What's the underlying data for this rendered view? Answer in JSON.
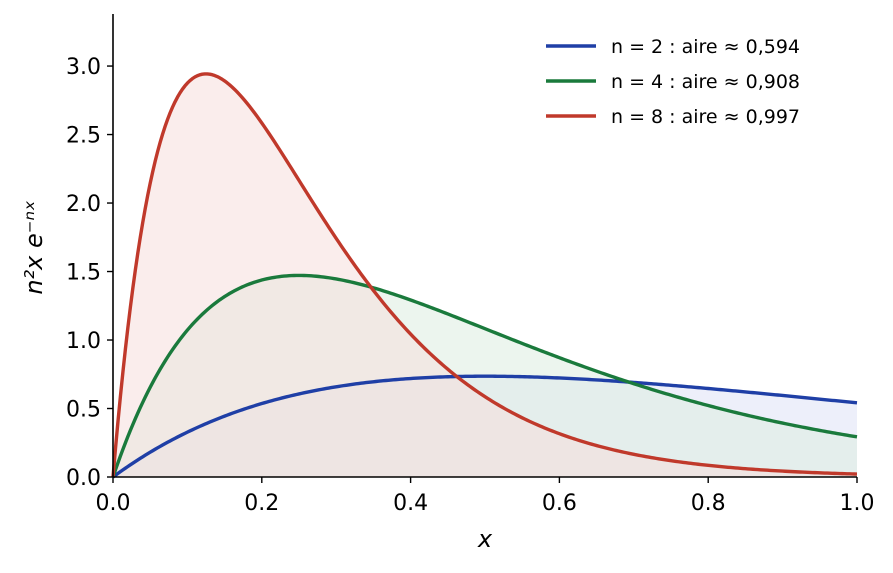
{
  "chart_data": {
    "type": "area",
    "title": "",
    "xlabel": "x",
    "ylabel": "n²x e⁻ⁿˣ",
    "xlim": [
      0.0,
      1.0
    ],
    "ylim": [
      0.0,
      3.38
    ],
    "x_ticks": [
      "0.0",
      "0.2",
      "0.4",
      "0.6",
      "0.8",
      "1.0"
    ],
    "y_ticks": [
      "0.0",
      "0.5",
      "1.0",
      "1.5",
      "2.0",
      "2.5",
      "3.0"
    ],
    "grid": false,
    "legend_position": "top-right",
    "function": "n^2 * x * exp(-n * x)",
    "series": [
      {
        "name": "n = 2 : aire ≈ 0,594",
        "n": 2,
        "color": "#1f3fa6",
        "fill": "#dfe2f6",
        "x": [
          0.0,
          0.1,
          0.2,
          0.3,
          0.4,
          0.5,
          0.6,
          0.7,
          0.8,
          0.9,
          1.0
        ],
        "values": [
          0.0,
          0.327,
          0.536,
          0.659,
          0.719,
          0.736,
          0.723,
          0.69,
          0.646,
          0.595,
          0.541
        ]
      },
      {
        "name": "n = 4 : aire ≈ 0,908",
        "n": 4,
        "color": "#1a7a3c",
        "fill": "#dcece0",
        "x": [
          0.0,
          0.1,
          0.2,
          0.3,
          0.4,
          0.5,
          0.6,
          0.7,
          0.8,
          0.9,
          1.0
        ],
        "values": [
          0.0,
          1.073,
          1.438,
          1.446,
          1.292,
          1.083,
          0.871,
          0.684,
          0.522,
          0.393,
          0.293
        ]
      },
      {
        "name": "n = 8 : aire ≈ 0,997",
        "n": 8,
        "color": "#c0392b",
        "fill": "#f6dedd",
        "x": [
          0.0,
          0.1,
          0.2,
          0.3,
          0.4,
          0.5,
          0.6,
          0.7,
          0.8,
          0.9,
          1.0
        ],
        "values": [
          0.0,
          2.876,
          2.585,
          1.742,
          1.043,
          0.586,
          0.316,
          0.166,
          0.085,
          0.043,
          0.021
        ]
      }
    ]
  }
}
